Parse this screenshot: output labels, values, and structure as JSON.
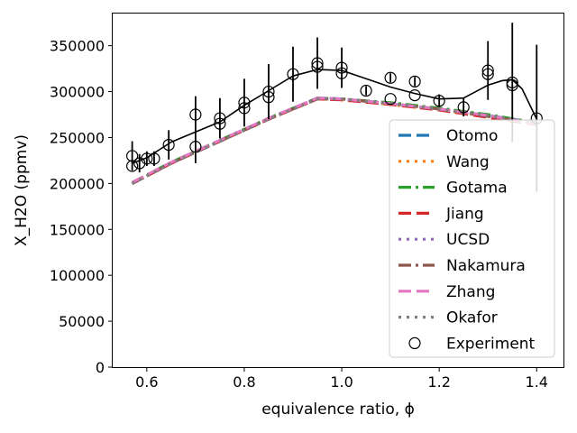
{
  "chart_data": {
    "type": "line",
    "xlabel": "equivalence ratio, ϕ",
    "ylabel": "X_H2O (ppmv)",
    "xlim": [
      0.53,
      1.455
    ],
    "ylim": [
      0,
      385000
    ],
    "x_ticks": [
      0.6,
      0.8,
      1.0,
      1.2,
      1.4
    ],
    "x_tick_labels": [
      "0.6",
      "0.8",
      "1.0",
      "1.2",
      "1.4"
    ],
    "y_ticks": [
      0,
      50000,
      100000,
      150000,
      200000,
      250000,
      300000,
      350000
    ],
    "y_tick_labels": [
      "0",
      "50000",
      "100000",
      "150000",
      "200000",
      "250000",
      "300000",
      "350000"
    ],
    "grid": false,
    "legend_position": "lower-right",
    "series": [
      {
        "name": "Otomo",
        "color": "#1f77b4",
        "dash": "dashed",
        "x": [
          0.57,
          0.65,
          0.75,
          0.85,
          0.95,
          1.0,
          1.1,
          1.2,
          1.3,
          1.4
        ],
        "y": [
          200000,
          222000,
          246000,
          270000,
          293000,
          292000,
          287000,
          281000,
          274000,
          266000
        ]
      },
      {
        "name": "Wang",
        "color": "#ff7f0e",
        "dash": "dotted",
        "x": [
          0.57,
          0.65,
          0.75,
          0.85,
          0.95,
          1.0,
          1.1,
          1.2,
          1.3,
          1.4
        ],
        "y": [
          200000,
          222000,
          246000,
          270000,
          292000,
          291000,
          286000,
          280000,
          273000,
          265000
        ]
      },
      {
        "name": "Gotama",
        "color": "#2ca02c",
        "dash": "dashdot",
        "x": [
          0.57,
          0.65,
          0.75,
          0.85,
          0.95,
          1.0,
          1.1,
          1.2,
          1.3,
          1.4
        ],
        "y": [
          201000,
          223000,
          247000,
          271000,
          293000,
          292000,
          288000,
          282000,
          275000,
          266000
        ]
      },
      {
        "name": "Jiang",
        "color": "#d62728",
        "dash": "dashed",
        "x": [
          0.57,
          0.65,
          0.75,
          0.85,
          0.95,
          1.0,
          1.1,
          1.2,
          1.3,
          1.4
        ],
        "y": [
          200000,
          222000,
          246000,
          270000,
          292000,
          291000,
          286000,
          280000,
          272000,
          264000
        ]
      },
      {
        "name": "UCSD",
        "color": "#9467bd",
        "dash": "dotted",
        "x": [
          0.57,
          0.65,
          0.75,
          0.85,
          0.95,
          1.0,
          1.1,
          1.2,
          1.3,
          1.4
        ],
        "y": [
          200000,
          222000,
          246000,
          270000,
          293000,
          292000,
          287000,
          281000,
          274000,
          265000
        ]
      },
      {
        "name": "Nakamura",
        "color": "#8c564b",
        "dash": "dashdot",
        "x": [
          0.57,
          0.65,
          0.75,
          0.85,
          0.95,
          1.0,
          1.1,
          1.2,
          1.3,
          1.4
        ],
        "y": [
          200000,
          222000,
          246000,
          270000,
          292000,
          292000,
          287000,
          281000,
          273000,
          265000
        ]
      },
      {
        "name": "Zhang",
        "color": "#e377c2",
        "dash": "dashed",
        "x": [
          0.57,
          0.65,
          0.75,
          0.85,
          0.95,
          1.0,
          1.1,
          1.2,
          1.3,
          1.4
        ],
        "y": [
          201000,
          223000,
          247000,
          271000,
          293000,
          292000,
          287000,
          281000,
          274000,
          265000
        ]
      },
      {
        "name": "Okafor",
        "color": "#7f7f7f",
        "dash": "dotted",
        "x": [
          0.57,
          0.65,
          0.75,
          0.85,
          0.95,
          1.0,
          1.1,
          1.2,
          1.3,
          1.4
        ],
        "y": [
          200000,
          222000,
          246000,
          270000,
          292000,
          292000,
          287000,
          281000,
          274000,
          266000
        ]
      }
    ],
    "experiment_trend": {
      "color": "#000000",
      "x": [
        0.57,
        0.6,
        0.65,
        0.7,
        0.75,
        0.8,
        0.85,
        0.9,
        0.95,
        1.0,
        1.05,
        1.1,
        1.15,
        1.2,
        1.25,
        1.3,
        1.33,
        1.35,
        1.37,
        1.4
      ],
      "y": [
        222000,
        228000,
        245000,
        256000,
        267000,
        285000,
        301000,
        317000,
        324000,
        323000,
        314000,
        305000,
        298000,
        292000,
        293000,
        307000,
        312000,
        313000,
        303000,
        270000
      ]
    },
    "experiment": {
      "name": "Experiment",
      "marker": "open-circle",
      "points": [
        {
          "x": 0.57,
          "y": 230000,
          "err": 16000
        },
        {
          "x": 0.57,
          "y": 219000,
          "err": 0
        },
        {
          "x": 0.585,
          "y": 222000,
          "err": 10000
        },
        {
          "x": 0.6,
          "y": 227000,
          "err": 8000
        },
        {
          "x": 0.615,
          "y": 227000,
          "err": 8000
        },
        {
          "x": 0.645,
          "y": 242000,
          "err": 16000
        },
        {
          "x": 0.7,
          "y": 275000,
          "err": 20000
        },
        {
          "x": 0.7,
          "y": 240000,
          "err": 18000
        },
        {
          "x": 0.75,
          "y": 271000,
          "err": 22000
        },
        {
          "x": 0.75,
          "y": 265000,
          "err": 0
        },
        {
          "x": 0.8,
          "y": 288000,
          "err": 26000
        },
        {
          "x": 0.8,
          "y": 282000,
          "err": 0
        },
        {
          "x": 0.85,
          "y": 300000,
          "err": 30000
        },
        {
          "x": 0.85,
          "y": 294000,
          "err": 0
        },
        {
          "x": 0.9,
          "y": 319000,
          "err": 30000
        },
        {
          "x": 0.95,
          "y": 331000,
          "err": 28000
        },
        {
          "x": 0.95,
          "y": 327000,
          "err": 0
        },
        {
          "x": 1.0,
          "y": 326000,
          "err": 22000
        },
        {
          "x": 1.0,
          "y": 320000,
          "err": 0
        },
        {
          "x": 1.05,
          "y": 301000,
          "err": 5000
        },
        {
          "x": 1.1,
          "y": 315000,
          "err": 5000
        },
        {
          "x": 1.1,
          "y": 292000,
          "err": 0
        },
        {
          "x": 1.15,
          "y": 311000,
          "err": 5000
        },
        {
          "x": 1.15,
          "y": 296000,
          "err": 0
        },
        {
          "x": 1.2,
          "y": 290000,
          "err": 7000
        },
        {
          "x": 1.25,
          "y": 283000,
          "err": 10000
        },
        {
          "x": 1.3,
          "y": 323000,
          "err": 32000
        },
        {
          "x": 1.3,
          "y": 319000,
          "err": 0
        },
        {
          "x": 1.35,
          "y": 310000,
          "err": 65000
        },
        {
          "x": 1.35,
          "y": 307000,
          "err": 0
        },
        {
          "x": 1.4,
          "y": 271000,
          "err": 80000
        }
      ]
    }
  }
}
